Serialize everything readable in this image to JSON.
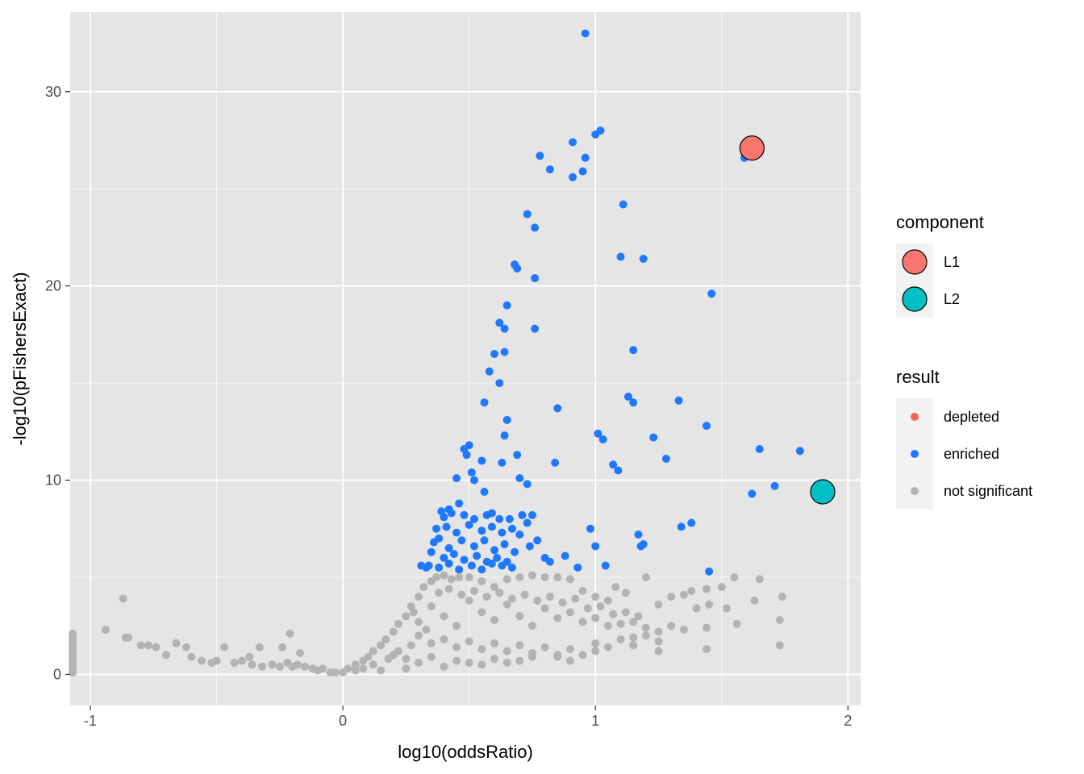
{
  "chart_data": {
    "type": "scatter",
    "xlabel": "log10(oddsRatio)",
    "ylabel": "-log10(pFishersExact)",
    "xlim": [
      -1.08,
      2.05
    ],
    "ylim": [
      -1.6,
      34.1
    ],
    "x_ticks": [
      -1,
      0,
      1,
      2
    ],
    "x_tick_labels": [
      "-1",
      "0",
      "1",
      "2"
    ],
    "y_ticks": [
      0,
      10,
      20,
      30
    ],
    "y_tick_labels": [
      "0",
      "10",
      "20",
      "30"
    ],
    "grid": true,
    "panel_background": "#e5e5e5",
    "grid_color": "#ffffff",
    "legend_position": "right",
    "legends": [
      {
        "title": "component",
        "entries": [
          {
            "label": "L1",
            "color": "#f8766d"
          },
          {
            "label": "L2",
            "color": "#00bfc4"
          }
        ]
      },
      {
        "title": "result",
        "entries": [
          {
            "label": "depleted",
            "color": "#f8664d"
          },
          {
            "label": "enriched",
            "color": "#1f78ff"
          },
          {
            "label": "not significant",
            "color": "#b3b3b3"
          }
        ]
      }
    ],
    "components": [
      {
        "name": "L1",
        "x": 1.62,
        "y": 27.1,
        "color": "#f8766d"
      },
      {
        "name": "L2",
        "x": 1.9,
        "y": 9.4,
        "color": "#00bfc4"
      }
    ],
    "series": [
      {
        "name": "enriched",
        "color": "#1f78ff",
        "points": [
          [
            0.96,
            33.0
          ],
          [
            1.02,
            28.0
          ],
          [
            1.0,
            27.8
          ],
          [
            0.91,
            27.4
          ],
          [
            0.78,
            26.7
          ],
          [
            0.96,
            26.6
          ],
          [
            0.82,
            26.0
          ],
          [
            0.95,
            25.9
          ],
          [
            0.91,
            25.6
          ],
          [
            1.59,
            26.6
          ],
          [
            0.73,
            23.7
          ],
          [
            1.11,
            24.2
          ],
          [
            0.76,
            23.0
          ],
          [
            1.1,
            21.5
          ],
          [
            1.19,
            21.4
          ],
          [
            0.68,
            21.1
          ],
          [
            0.69,
            20.9
          ],
          [
            0.76,
            20.4
          ],
          [
            1.46,
            19.6
          ],
          [
            0.65,
            19.0
          ],
          [
            0.62,
            18.1
          ],
          [
            0.64,
            17.8
          ],
          [
            0.76,
            17.8
          ],
          [
            0.6,
            16.5
          ],
          [
            0.64,
            16.6
          ],
          [
            1.15,
            16.7
          ],
          [
            0.58,
            15.6
          ],
          [
            0.62,
            15.0
          ],
          [
            1.13,
            14.3
          ],
          [
            1.15,
            14.0
          ],
          [
            1.33,
            14.1
          ],
          [
            0.56,
            14.0
          ],
          [
            0.85,
            13.7
          ],
          [
            0.65,
            13.1
          ],
          [
            1.44,
            12.8
          ],
          [
            0.64,
            12.3
          ],
          [
            1.01,
            12.4
          ],
          [
            1.03,
            12.1
          ],
          [
            1.23,
            12.2
          ],
          [
            0.49,
            11.3
          ],
          [
            0.48,
            11.6
          ],
          [
            0.5,
            11.8
          ],
          [
            0.55,
            11.0
          ],
          [
            0.63,
            10.9
          ],
          [
            0.69,
            11.3
          ],
          [
            1.65,
            11.6
          ],
          [
            1.81,
            11.5
          ],
          [
            1.28,
            11.1
          ],
          [
            0.84,
            10.9
          ],
          [
            1.07,
            10.8
          ],
          [
            1.09,
            10.5
          ],
          [
            0.51,
            10.4
          ],
          [
            0.45,
            10.1
          ],
          [
            0.52,
            10.0
          ],
          [
            0.7,
            10.1
          ],
          [
            0.73,
            9.8
          ],
          [
            1.71,
            9.7
          ],
          [
            1.62,
            9.3
          ],
          [
            0.56,
            9.4
          ],
          [
            0.39,
            8.4
          ],
          [
            0.42,
            8.5
          ],
          [
            0.46,
            8.8
          ],
          [
            0.4,
            8.1
          ],
          [
            0.43,
            8.3
          ],
          [
            0.48,
            8.2
          ],
          [
            0.52,
            8.0
          ],
          [
            0.57,
            8.2
          ],
          [
            0.62,
            8.0
          ],
          [
            0.59,
            8.3
          ],
          [
            0.66,
            8.0
          ],
          [
            0.71,
            8.2
          ],
          [
            0.75,
            8.2
          ],
          [
            0.73,
            7.8
          ],
          [
            0.37,
            7.5
          ],
          [
            0.41,
            7.6
          ],
          [
            0.45,
            7.3
          ],
          [
            0.5,
            7.7
          ],
          [
            0.55,
            7.4
          ],
          [
            0.59,
            7.6
          ],
          [
            0.63,
            7.3
          ],
          [
            0.67,
            7.5
          ],
          [
            0.7,
            7.2
          ],
          [
            0.38,
            7.0
          ],
          [
            0.36,
            6.8
          ],
          [
            0.42,
            6.5
          ],
          [
            0.47,
            6.9
          ],
          [
            0.52,
            6.6
          ],
          [
            0.56,
            6.9
          ],
          [
            0.6,
            6.4
          ],
          [
            0.64,
            6.7
          ],
          [
            0.68,
            6.3
          ],
          [
            0.74,
            6.6
          ],
          [
            0.77,
            6.9
          ],
          [
            0.35,
            6.3
          ],
          [
            0.4,
            6.0
          ],
          [
            0.44,
            6.2
          ],
          [
            0.48,
            5.9
          ],
          [
            0.53,
            6.1
          ],
          [
            0.57,
            5.8
          ],
          [
            0.61,
            6.0
          ],
          [
            0.65,
            5.8
          ],
          [
            0.34,
            5.6
          ],
          [
            0.38,
            5.5
          ],
          [
            0.42,
            5.7
          ],
          [
            0.46,
            5.4
          ],
          [
            0.51,
            5.6
          ],
          [
            0.55,
            5.4
          ],
          [
            0.59,
            5.7
          ],
          [
            0.63,
            5.6
          ],
          [
            0.67,
            5.5
          ],
          [
            0.31,
            5.6
          ],
          [
            0.33,
            5.5
          ],
          [
            0.8,
            6.0
          ],
          [
            0.82,
            5.8
          ],
          [
            0.88,
            6.1
          ],
          [
            0.93,
            5.5
          ],
          [
            0.98,
            7.5
          ],
          [
            1.0,
            6.6
          ],
          [
            1.04,
            5.6
          ],
          [
            1.17,
            7.2
          ],
          [
            1.18,
            6.6
          ],
          [
            1.19,
            6.7
          ],
          [
            1.34,
            7.6
          ],
          [
            1.38,
            7.8
          ],
          [
            1.45,
            5.3
          ]
        ]
      },
      {
        "name": "not significant",
        "color": "#b3b3b3",
        "points": [
          [
            -1.07,
            2.1
          ],
          [
            -1.07,
            1.9
          ],
          [
            -1.07,
            1.7
          ],
          [
            -1.07,
            1.5
          ],
          [
            -1.07,
            1.3
          ],
          [
            -1.07,
            1.1
          ],
          [
            -1.07,
            0.9
          ],
          [
            -1.07,
            0.7
          ],
          [
            -1.07,
            0.5
          ],
          [
            -1.07,
            0.3
          ],
          [
            -1.07,
            0.1
          ],
          [
            -0.87,
            3.9
          ],
          [
            -0.94,
            2.3
          ],
          [
            -0.85,
            1.9
          ],
          [
            -0.86,
            1.9
          ],
          [
            -0.8,
            1.5
          ],
          [
            -0.77,
            1.5
          ],
          [
            -0.74,
            1.4
          ],
          [
            -0.7,
            1.0
          ],
          [
            -0.66,
            1.6
          ],
          [
            -0.62,
            1.4
          ],
          [
            -0.6,
            0.9
          ],
          [
            -0.56,
            0.7
          ],
          [
            -0.52,
            0.6
          ],
          [
            -0.5,
            0.7
          ],
          [
            -0.47,
            1.4
          ],
          [
            -0.43,
            0.6
          ],
          [
            -0.4,
            0.7
          ],
          [
            -0.37,
            0.9
          ],
          [
            -0.33,
            1.4
          ],
          [
            -0.36,
            0.5
          ],
          [
            -0.32,
            0.4
          ],
          [
            -0.28,
            0.5
          ],
          [
            -0.25,
            0.4
          ],
          [
            -0.24,
            1.4
          ],
          [
            -0.22,
            0.6
          ],
          [
            -0.2,
            0.4
          ],
          [
            -0.21,
            2.1
          ],
          [
            -0.17,
            1.1
          ],
          [
            -0.18,
            0.5
          ],
          [
            -0.15,
            0.4
          ],
          [
            -0.12,
            0.3
          ],
          [
            -0.1,
            0.2
          ],
          [
            -0.08,
            0.3
          ],
          [
            -0.05,
            0.1
          ],
          [
            -0.03,
            0.1
          ],
          [
            0.0,
            0.1
          ],
          [
            0.02,
            0.3
          ],
          [
            0.05,
            0.5
          ],
          [
            0.08,
            0.7
          ],
          [
            0.1,
            0.9
          ],
          [
            0.12,
            1.2
          ],
          [
            0.15,
            1.5
          ],
          [
            0.17,
            1.8
          ],
          [
            0.2,
            2.2
          ],
          [
            0.22,
            2.6
          ],
          [
            0.25,
            3.0
          ],
          [
            0.27,
            3.5
          ],
          [
            0.3,
            4.0
          ],
          [
            0.32,
            4.5
          ],
          [
            0.35,
            4.8
          ],
          [
            0.37,
            5.0
          ],
          [
            0.4,
            5.1
          ],
          [
            0.43,
            4.9
          ],
          [
            0.46,
            5.0
          ],
          [
            0.5,
            5.0
          ],
          [
            0.55,
            4.8
          ],
          [
            0.6,
            4.5
          ],
          [
            0.65,
            4.9
          ],
          [
            0.7,
            5.0
          ],
          [
            0.75,
            5.1
          ],
          [
            0.8,
            5.0
          ],
          [
            0.85,
            5.0
          ],
          [
            0.9,
            4.9
          ],
          [
            0.95,
            4.3
          ],
          [
            1.0,
            4.0
          ],
          [
            1.05,
            3.8
          ],
          [
            1.08,
            4.5
          ],
          [
            1.12,
            4.2
          ],
          [
            1.2,
            5.0
          ],
          [
            1.25,
            3.6
          ],
          [
            1.3,
            4.0
          ],
          [
            1.35,
            4.1
          ],
          [
            1.38,
            4.3
          ],
          [
            1.44,
            4.4
          ],
          [
            1.4,
            3.4
          ],
          [
            1.45,
            3.6
          ],
          [
            1.5,
            4.5
          ],
          [
            1.52,
            3.4
          ],
          [
            1.55,
            5.0
          ],
          [
            1.63,
            3.8
          ],
          [
            1.65,
            4.9
          ],
          [
            1.74,
            4.0
          ],
          [
            1.73,
            2.8
          ],
          [
            1.73,
            1.5
          ],
          [
            1.56,
            2.6
          ],
          [
            1.44,
            2.4
          ],
          [
            1.44,
            1.3
          ],
          [
            1.25,
            1.2
          ],
          [
            1.15,
            1.5
          ],
          [
            1.0,
            1.2
          ],
          [
            0.85,
            0.9
          ],
          [
            0.7,
            0.7
          ],
          [
            0.55,
            0.5
          ],
          [
            0.4,
            0.4
          ],
          [
            0.25,
            0.3
          ],
          [
            0.15,
            0.2
          ],
          [
            0.35,
            3.5
          ],
          [
            0.4,
            3.0
          ],
          [
            0.45,
            2.5
          ],
          [
            0.5,
            3.8
          ],
          [
            0.55,
            3.2
          ],
          [
            0.6,
            2.8
          ],
          [
            0.65,
            3.6
          ],
          [
            0.7,
            3.0
          ],
          [
            0.75,
            2.5
          ],
          [
            0.8,
            3.4
          ],
          [
            0.85,
            2.9
          ],
          [
            0.9,
            3.2
          ],
          [
            0.95,
            2.7
          ],
          [
            1.0,
            2.9
          ],
          [
            1.05,
            2.5
          ],
          [
            1.1,
            2.6
          ],
          [
            1.15,
            2.7
          ],
          [
            1.2,
            2.4
          ],
          [
            1.25,
            2.2
          ],
          [
            1.3,
            2.5
          ],
          [
            1.35,
            2.3
          ],
          [
            0.3,
            2.0
          ],
          [
            0.35,
            1.6
          ],
          [
            0.4,
            1.8
          ],
          [
            0.45,
            1.4
          ],
          [
            0.5,
            1.7
          ],
          [
            0.55,
            1.3
          ],
          [
            0.6,
            1.6
          ],
          [
            0.65,
            1.2
          ],
          [
            0.7,
            1.5
          ],
          [
            0.75,
            1.1
          ],
          [
            0.8,
            1.4
          ],
          [
            0.85,
            1.0
          ],
          [
            0.9,
            1.3
          ],
          [
            0.95,
            1.0
          ],
          [
            1.0,
            1.6
          ],
          [
            1.05,
            1.4
          ],
          [
            1.1,
            1.8
          ],
          [
            1.15,
            1.9
          ],
          [
            1.2,
            2.0
          ],
          [
            1.25,
            1.7
          ],
          [
            0.2,
            1.0
          ],
          [
            0.25,
            0.8
          ],
          [
            0.3,
            0.6
          ],
          [
            0.35,
            0.9
          ],
          [
            0.45,
            0.7
          ],
          [
            0.5,
            0.6
          ],
          [
            0.6,
            0.8
          ],
          [
            0.65,
            0.6
          ],
          [
            0.75,
            0.9
          ],
          [
            0.9,
            0.7
          ],
          [
            0.38,
            4.2
          ],
          [
            0.42,
            4.4
          ],
          [
            0.47,
            4.1
          ],
          [
            0.52,
            4.3
          ],
          [
            0.57,
            4.0
          ],
          [
            0.62,
            4.2
          ],
          [
            0.67,
            3.9
          ],
          [
            0.72,
            4.1
          ],
          [
            0.77,
            3.8
          ],
          [
            0.82,
            4.0
          ],
          [
            0.87,
            3.7
          ],
          [
            0.92,
            3.9
          ],
          [
            0.97,
            3.4
          ],
          [
            1.02,
            3.5
          ],
          [
            1.07,
            3.1
          ],
          [
            1.12,
            3.2
          ],
          [
            1.17,
            3.0
          ],
          [
            0.28,
            3.2
          ],
          [
            0.3,
            2.7
          ],
          [
            0.33,
            2.3
          ],
          [
            0.27,
            1.5
          ],
          [
            0.22,
            1.2
          ],
          [
            0.18,
            0.8
          ],
          [
            0.12,
            0.5
          ],
          [
            0.08,
            0.3
          ],
          [
            0.05,
            0.2
          ]
        ]
      }
    ]
  }
}
